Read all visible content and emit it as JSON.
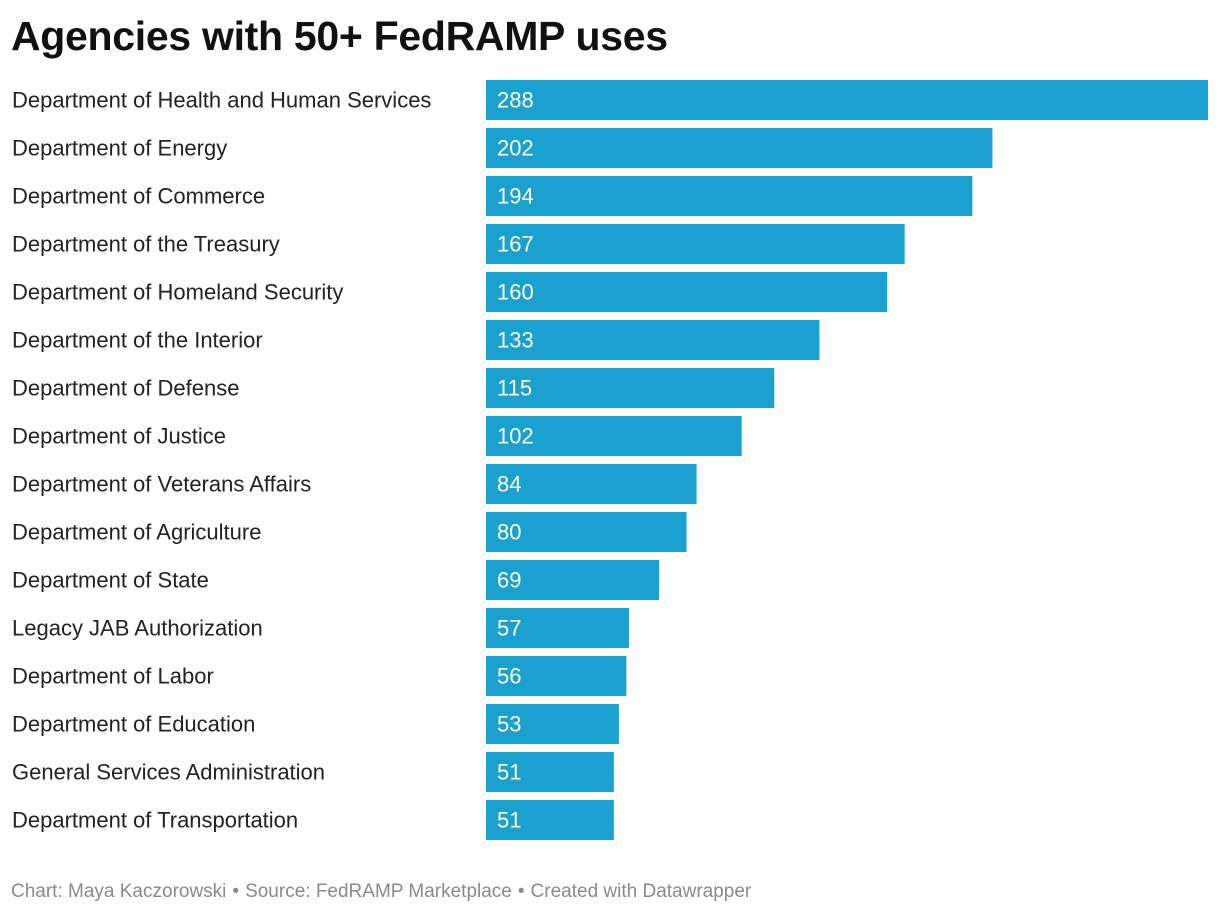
{
  "chart_data": {
    "type": "bar",
    "orientation": "horizontal",
    "title": "Agencies with 50+ FedRAMP uses",
    "xlabel": "",
    "ylabel": "",
    "xlim": [
      0,
      288
    ],
    "grid": false,
    "categories": [
      "Department of Health and Human Services",
      "Department of Energy",
      "Department of Commerce",
      "Department of the Treasury",
      "Department of Homeland Security",
      "Department of the Interior",
      "Department of Defense",
      "Department of Justice",
      "Department of Veterans Affairs",
      "Department of Agriculture",
      "Department of State",
      "Legacy JAB Authorization",
      "Department of Labor",
      "Department of Education",
      "General Services Administration",
      "Department of Transportation"
    ],
    "values": [
      288,
      202,
      194,
      167,
      160,
      133,
      115,
      102,
      84,
      80,
      69,
      57,
      56,
      53,
      51,
      51
    ],
    "bar_color": "#1aa1cf"
  },
  "footer": {
    "chart_credit": "Chart: Maya Kaczorowski",
    "source": "Source: FedRAMP Marketplace",
    "created_with": "Created with Datawrapper",
    "separator": "•"
  }
}
